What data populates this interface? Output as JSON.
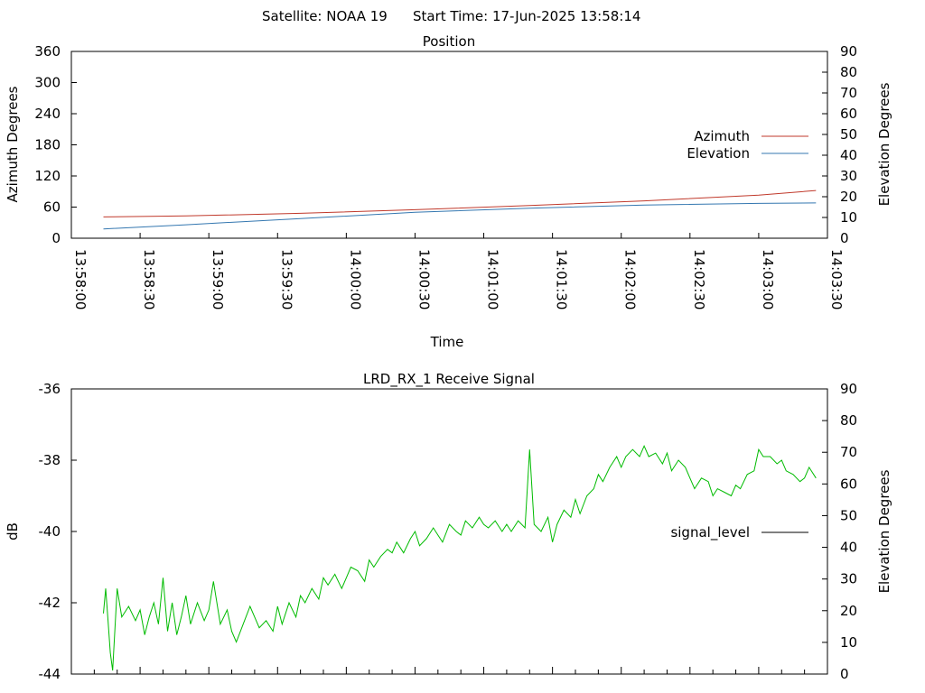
{
  "header": {
    "satellite": "Satellite: NOAA 19",
    "start_time": "Start Time: 17-Jun-2025 13:58:14"
  },
  "colors": {
    "azimuth": "#c0392b",
    "elevation": "#3477b0",
    "signal": "#00bb00",
    "axis": "#000000",
    "background": "#ffffff"
  },
  "chart_data": [
    {
      "type": "line",
      "title": "Position",
      "xlabel": "Time",
      "ylabel": "Azimuth Degrees",
      "y2label": "Elevation Degrees",
      "xlim": [
        0,
        330
      ],
      "ylim": [
        0,
        360
      ],
      "y2lim": [
        0,
        90
      ],
      "x_ticks": [
        0,
        30,
        60,
        90,
        120,
        150,
        180,
        210,
        240,
        270,
        300,
        330
      ],
      "x_tick_labels": [
        "13:58:00",
        "13:58:30",
        "13:59:00",
        "13:59:30",
        "14:00:00",
        "14:00:30",
        "14:01:00",
        "14:01:30",
        "14:02:00",
        "14:02:30",
        "14:03:00",
        "14:03:30"
      ],
      "y_ticks": [
        0,
        60,
        120,
        180,
        240,
        300,
        360
      ],
      "y2_ticks": [
        0,
        10,
        20,
        30,
        40,
        50,
        60,
        70,
        80,
        90
      ],
      "grid": false,
      "legend_position": "right",
      "series": [
        {
          "name": "Azimuth",
          "axis": "y",
          "x": [
            14,
            50,
            100,
            150,
            200,
            250,
            300,
            325
          ],
          "values": [
            41,
            43,
            48,
            55,
            63,
            72,
            83,
            92
          ]
        },
        {
          "name": "Elevation",
          "axis": "y2",
          "x": [
            14,
            50,
            100,
            150,
            200,
            250,
            300,
            325
          ],
          "values": [
            4.5,
            6.5,
            9.5,
            12.5,
            14.5,
            16,
            16.8,
            17
          ]
        }
      ]
    },
    {
      "type": "line",
      "title": "LRD_RX_1 Receive Signal",
      "ylabel": "dB",
      "y2label": "Elevation Degrees",
      "xlim": [
        0,
        330
      ],
      "ylim": [
        -44,
        -36
      ],
      "y2lim": [
        0,
        90
      ],
      "y_ticks": [
        -44,
        -42,
        -40,
        -38,
        -36
      ],
      "y2_ticks": [
        0,
        10,
        20,
        30,
        40,
        50,
        60,
        70,
        80,
        90
      ],
      "x_minor_ticks_every": 10,
      "grid": false,
      "legend_position": "right",
      "series": [
        {
          "name": "signal_level",
          "axis": "y",
          "x": [
            14,
            15,
            16,
            17,
            18,
            20,
            22,
            25,
            28,
            30,
            32,
            34,
            36,
            38,
            40,
            42,
            44,
            46,
            48,
            50,
            52,
            55,
            58,
            60,
            62,
            65,
            68,
            70,
            72,
            75,
            78,
            80,
            82,
            85,
            88,
            90,
            92,
            95,
            98,
            100,
            102,
            105,
            108,
            110,
            112,
            115,
            118,
            120,
            122,
            125,
            128,
            130,
            132,
            135,
            138,
            140,
            142,
            145,
            148,
            150,
            152,
            155,
            158,
            160,
            162,
            165,
            168,
            170,
            172,
            175,
            178,
            180,
            182,
            185,
            188,
            190,
            192,
            195,
            198,
            200,
            202,
            205,
            208,
            210,
            212,
            215,
            218,
            220,
            222,
            225,
            228,
            230,
            232,
            235,
            238,
            240,
            242,
            245,
            248,
            250,
            252,
            255,
            258,
            260,
            262,
            265,
            268,
            270,
            272,
            275,
            278,
            280,
            282,
            285,
            288,
            290,
            292,
            295,
            298,
            300,
            302,
            305,
            308,
            310,
            312,
            315,
            318,
            320,
            322,
            325
          ],
          "values": [
            -42.3,
            -41.6,
            -42.5,
            -43.4,
            -43.9,
            -41.6,
            -42.4,
            -42.1,
            -42.5,
            -42.2,
            -42.9,
            -42.4,
            -42.0,
            -42.6,
            -41.3,
            -42.8,
            -42.0,
            -42.9,
            -42.4,
            -41.8,
            -42.6,
            -42.0,
            -42.5,
            -42.2,
            -41.4,
            -42.6,
            -42.2,
            -42.8,
            -43.1,
            -42.6,
            -42.1,
            -42.4,
            -42.7,
            -42.5,
            -42.8,
            -42.1,
            -42.6,
            -42.0,
            -42.4,
            -41.8,
            -42.0,
            -41.6,
            -41.9,
            -41.3,
            -41.5,
            -41.2,
            -41.6,
            -41.3,
            -41.0,
            -41.1,
            -41.4,
            -40.8,
            -41.0,
            -40.7,
            -40.5,
            -40.6,
            -40.3,
            -40.6,
            -40.2,
            -40.0,
            -40.4,
            -40.2,
            -39.9,
            -40.1,
            -40.3,
            -39.8,
            -40.0,
            -40.1,
            -39.7,
            -39.9,
            -39.6,
            -39.8,
            -39.9,
            -39.7,
            -40.0,
            -39.8,
            -40.0,
            -39.7,
            -39.9,
            -37.7,
            -39.8,
            -40.0,
            -39.6,
            -40.3,
            -39.8,
            -39.4,
            -39.6,
            -39.1,
            -39.5,
            -39.0,
            -38.8,
            -38.4,
            -38.6,
            -38.2,
            -37.9,
            -38.2,
            -37.9,
            -37.7,
            -37.9,
            -37.6,
            -37.9,
            -37.8,
            -38.1,
            -37.8,
            -38.3,
            -38.0,
            -38.2,
            -38.5,
            -38.8,
            -38.5,
            -38.6,
            -39.0,
            -38.8,
            -38.9,
            -39.0,
            -38.7,
            -38.8,
            -38.4,
            -38.3,
            -37.7,
            -37.9,
            -37.9,
            -38.1,
            -38.0,
            -38.3,
            -38.4,
            -38.6,
            -38.5,
            -38.2,
            -38.5
          ]
        }
      ]
    }
  ]
}
